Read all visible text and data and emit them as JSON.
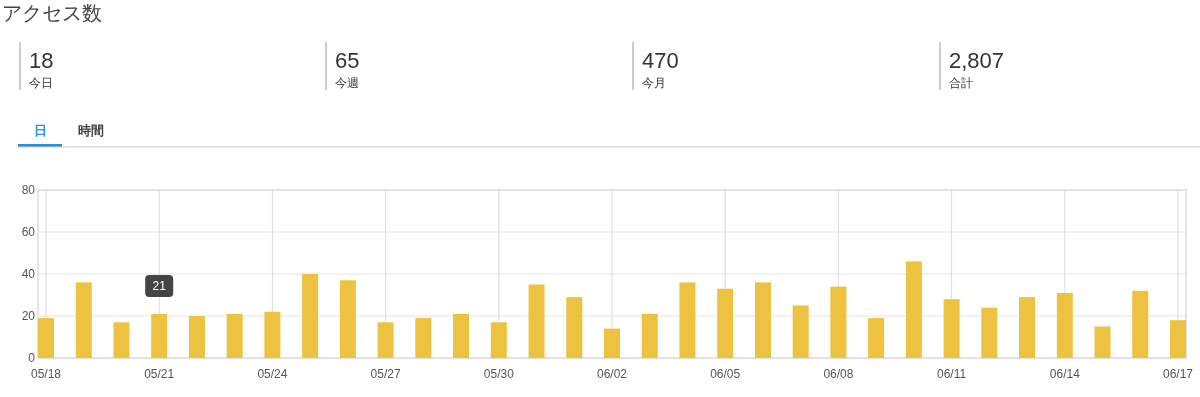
{
  "chart_data": [
    {
      "type": "other",
      "title": "アクセス数",
      "annotations": [
        "18",
        "今日",
        "65",
        "今週",
        "470",
        "今月",
        "2,807",
        "合計",
        "日",
        "時間"
      ]
    },
    {
      "type": "bar",
      "categories": [
        "05/18",
        null,
        null,
        "05/21",
        null,
        null,
        "05/24",
        null,
        null,
        "05/27",
        null,
        null,
        "05/30",
        null,
        null,
        "06/02",
        null,
        null,
        "06/05",
        null,
        null,
        "06/08",
        null,
        null,
        "06/11",
        null,
        null,
        "06/14",
        null,
        null,
        "06/17"
      ],
      "values": [
        19,
        36,
        17,
        21,
        20,
        21,
        22,
        40,
        37,
        17,
        19,
        21,
        17,
        35,
        29,
        14,
        21,
        36,
        33,
        36,
        25,
        34,
        19,
        46,
        28,
        24,
        29,
        31,
        15,
        32,
        18
      ],
      "color": "#edc240",
      "ylim": [
        0,
        80
      ],
      "yticks": [
        0,
        20,
        40,
        60,
        80
      ],
      "grid": true,
      "annotations": [
        {
          "text": "21",
          "x": "05/21",
          "y": 21
        }
      ]
    }
  ]
}
